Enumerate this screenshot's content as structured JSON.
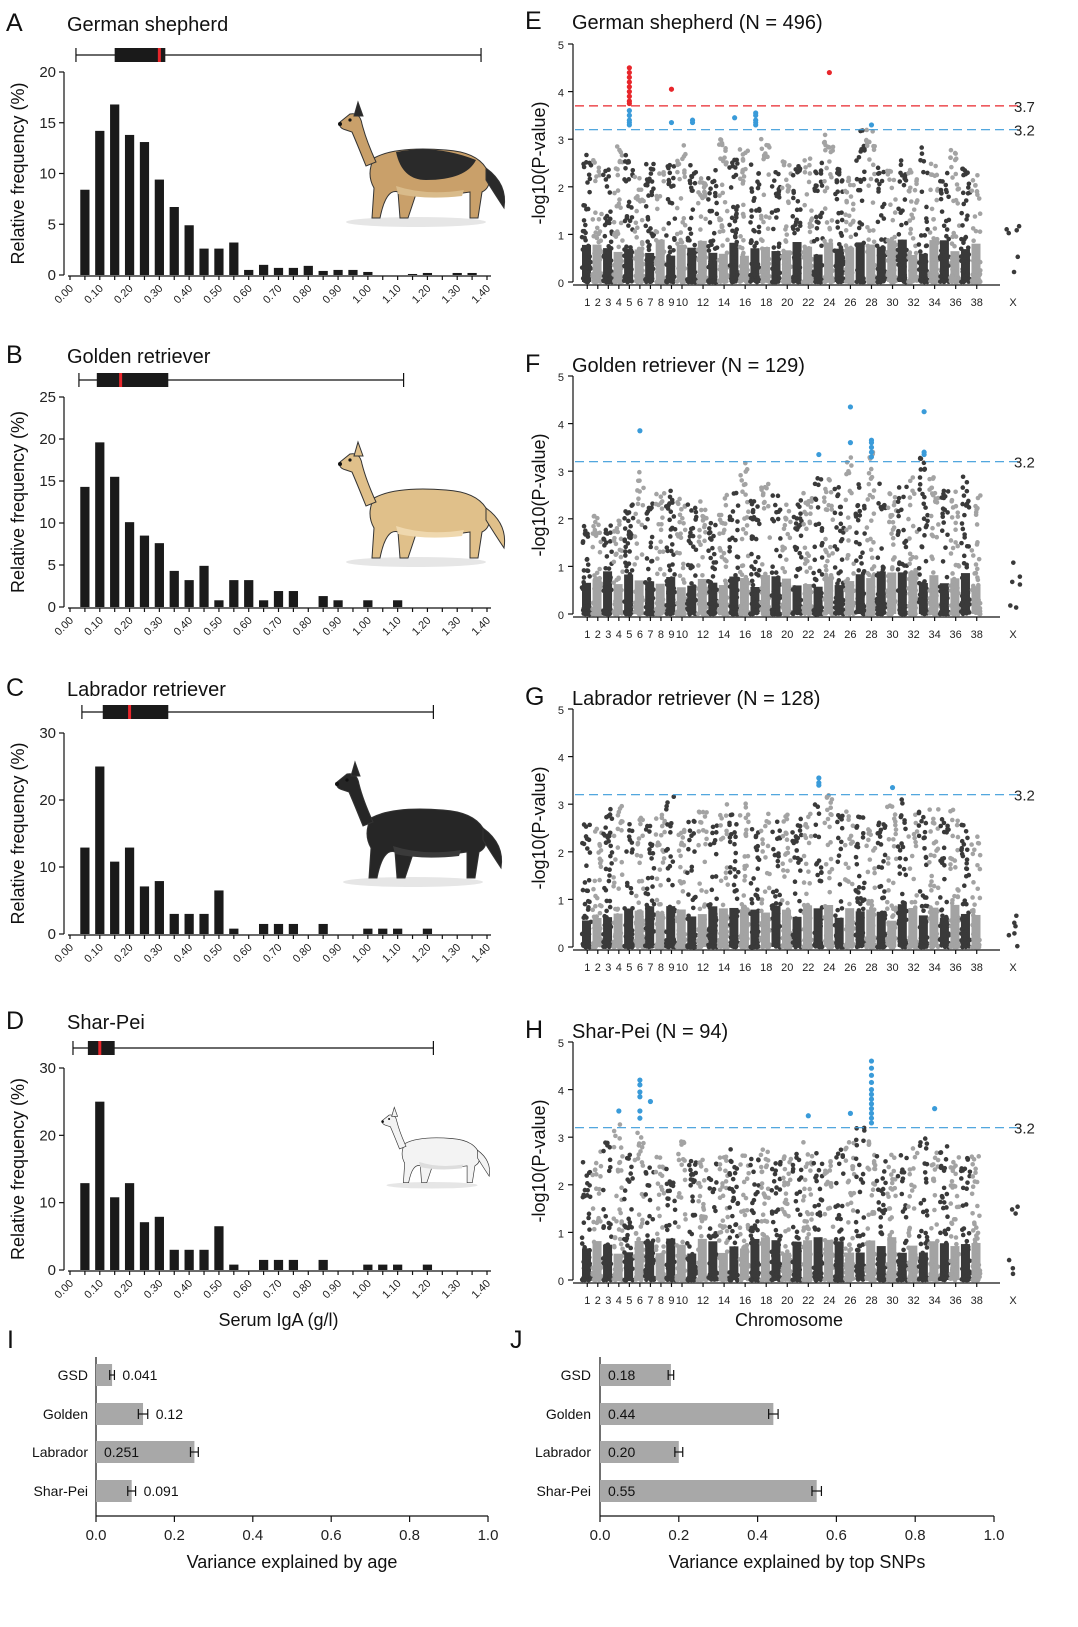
{
  "chart_data": [
    {
      "panel": "A",
      "title": "German shepherd",
      "type": "bar",
      "ylabel": "Relative frequency (%)",
      "ylim": [
        0,
        20
      ],
      "yticks": [
        0,
        5,
        10,
        15,
        20
      ],
      "xticks": [
        "0.00",
        "0.10",
        "0.20",
        "0.30",
        "0.40",
        "0.50",
        "0.60",
        "0.70",
        "0.80",
        "0.90",
        "1.00",
        "1.10",
        "1.20",
        "1.30",
        "1.40"
      ],
      "bin_width": 0.05,
      "bin_start": 0.05,
      "values": [
        8.4,
        14.2,
        16.8,
        13.8,
        13.1,
        9.4,
        6.7,
        4.9,
        2.6,
        2.6,
        3.2,
        0.5,
        1.0,
        0.7,
        0.7,
        0.9,
        0.4,
        0.5,
        0.5,
        0.3,
        0,
        0,
        0.1,
        0.2,
        0,
        0.2,
        0.2,
        0
      ],
      "boxplot": {
        "min": 0.02,
        "q1": 0.15,
        "median": 0.3,
        "q3": 0.32,
        "max": 1.38
      }
    },
    {
      "panel": "B",
      "title": "Golden retriever",
      "type": "bar",
      "ylabel": "Relative frequency (%)",
      "ylim": [
        0,
        25
      ],
      "yticks": [
        0,
        5,
        10,
        15,
        20,
        25
      ],
      "xticks": [
        "0.00",
        "0.10",
        "0.20",
        "0.30",
        "0.40",
        "0.50",
        "0.60",
        "0.70",
        "0.80",
        "0.90",
        "1.00",
        "1.10",
        "1.20",
        "1.30",
        "1.40"
      ],
      "bin_width": 0.05,
      "bin_start": 0.05,
      "values": [
        14.3,
        19.6,
        15.5,
        10.1,
        8.5,
        7.6,
        4.3,
        3.2,
        4.9,
        0.8,
        3.2,
        3.2,
        0.8,
        1.9,
        1.9,
        0,
        1.3,
        0.8,
        0,
        0.8,
        0,
        0.8,
        0,
        0,
        0,
        0,
        0,
        0
      ],
      "boxplot": {
        "min": 0.03,
        "q1": 0.09,
        "median": 0.17,
        "q3": 0.33,
        "max": 1.12
      }
    },
    {
      "panel": "C",
      "title": "Labrador retriever",
      "type": "bar",
      "ylabel": "Relative frequency (%)",
      "ylim": [
        0,
        30
      ],
      "yticks": [
        0,
        10,
        20,
        30
      ],
      "xticks": [
        "0.00",
        "0.10",
        "0.20",
        "0.30",
        "0.40",
        "0.50",
        "0.60",
        "0.70",
        "0.80",
        "0.90",
        "1.00",
        "1.10",
        "1.20",
        "1.30",
        "1.40"
      ],
      "bin_width": 0.05,
      "bin_start": 0.05,
      "values": [
        12.9,
        25.0,
        10.8,
        12.9,
        7.1,
        7.9,
        3.0,
        3.0,
        3.0,
        6.5,
        0.8,
        0,
        1.5,
        1.5,
        1.5,
        0,
        1.5,
        0,
        0,
        0.8,
        0.8,
        0.8,
        0,
        0.8,
        0,
        0,
        0,
        0
      ],
      "boxplot": {
        "min": 0.04,
        "q1": 0.11,
        "median": 0.2,
        "q3": 0.33,
        "max": 1.22
      }
    },
    {
      "panel": "D",
      "title": "Shar-Pei",
      "type": "bar",
      "ylabel": "Relative frequency (%)",
      "xlabel": "Serum IgA (g/l)",
      "ylim": [
        0,
        30
      ],
      "yticks": [
        0,
        10,
        20,
        30
      ],
      "xticks": [
        "0.00",
        "0.10",
        "0.20",
        "0.30",
        "0.40",
        "0.50",
        "0.60",
        "0.70",
        "0.80",
        "0.90",
        "1.00",
        "1.10",
        "1.20",
        "1.30",
        "1.40"
      ],
      "bin_width": 0.05,
      "bin_start": 0.05,
      "values": [
        12.9,
        25.0,
        10.8,
        12.9,
        7.1,
        7.9,
        3.0,
        3.0,
        3.0,
        6.5,
        0.8,
        0,
        1.5,
        1.5,
        1.5,
        0,
        1.5,
        0,
        0,
        0.8,
        0.8,
        0.8,
        0,
        0.8,
        0,
        0,
        0,
        0
      ],
      "boxplot": {
        "min": 0.01,
        "q1": 0.06,
        "median": 0.1,
        "q3": 0.15,
        "max": 1.22
      }
    },
    {
      "panel": "E",
      "title": "German shepherd (N = 496)",
      "type": "scatter",
      "ylabel": "-log10(P-value)",
      "ylim": [
        0,
        5
      ],
      "yticks": [
        0,
        1,
        2,
        3,
        4,
        5
      ],
      "xticks": [
        "1",
        "2",
        "3",
        "4",
        "5",
        "6",
        "7",
        "8",
        "9",
        "10",
        "12",
        "14",
        "16",
        "18",
        "20",
        "22",
        "24",
        "26",
        "28",
        "30",
        "32",
        "34",
        "36",
        "38",
        "X"
      ],
      "thresholds": [
        {
          "value": 3.7,
          "label": "3.7",
          "color": "#e8262b"
        },
        {
          "value": 3.2,
          "label": "3.2",
          "color": "#3a9bd9"
        }
      ],
      "peak_max": [
        2.7,
        2.6,
        2.4,
        2.9,
        2.8,
        2.3,
        2.5,
        2.4,
        2.6,
        2.9,
        2.5,
        2.3,
        2.4,
        3.0,
        2.6,
        2.9,
        2.5,
        3.1,
        2.4,
        2.6,
        2.5,
        2.7,
        2.6,
        3.1,
        2.4,
        2.2,
        3.2,
        3.2,
        2.4,
        2.5,
        2.6,
        2.5,
        2.9,
        2.5,
        2.3,
        2.8,
        2.4,
        2.3,
        1.2
      ],
      "hits": [
        {
          "chrom": 5,
          "values": [
            4.5,
            4.4,
            4.3,
            4.2,
            4.1,
            4.0,
            3.9,
            3.8,
            3.75
          ],
          "color": "#e8262b"
        },
        {
          "chrom": 5,
          "values": [
            3.6,
            3.5,
            3.4,
            3.35,
            3.3
          ],
          "color": "#3a9bd9"
        },
        {
          "chrom": 9,
          "values": [
            4.05
          ],
          "color": "#e8262b"
        },
        {
          "chrom": 9,
          "values": [
            3.35
          ],
          "color": "#3a9bd9"
        },
        {
          "chrom": 11,
          "values": [
            3.4,
            3.35
          ],
          "color": "#3a9bd9"
        },
        {
          "chrom": 15,
          "values": [
            3.45
          ],
          "color": "#3a9bd9"
        },
        {
          "chrom": 17,
          "values": [
            3.55,
            3.5,
            3.4,
            3.35,
            3.3
          ],
          "color": "#3a9bd9"
        },
        {
          "chrom": 24,
          "values": [
            4.4
          ],
          "color": "#e8262b"
        },
        {
          "chrom": 28,
          "values": [
            3.3
          ],
          "color": "#3a9bd9"
        }
      ]
    },
    {
      "panel": "F",
      "title": "Golden retriever (N = 129)",
      "type": "scatter",
      "ylabel": "-log10(P-value)",
      "ylim": [
        0,
        5
      ],
      "yticks": [
        0,
        1,
        2,
        3,
        4,
        5
      ],
      "xticks": [
        "1",
        "2",
        "3",
        "4",
        "5",
        "6",
        "7",
        "8",
        "9",
        "10",
        "12",
        "14",
        "16",
        "18",
        "20",
        "22",
        "24",
        "26",
        "28",
        "30",
        "32",
        "34",
        "36",
        "38",
        "X"
      ],
      "thresholds": [
        {
          "value": 3.2,
          "label": "3.2",
          "color": "#3a9bd9"
        }
      ],
      "peak_max": [
        2.0,
        2.1,
        1.9,
        2.0,
        2.3,
        3.0,
        2.4,
        2.6,
        2.6,
        2.5,
        2.3,
        2.4,
        2.0,
        2.5,
        2.6,
        3.2,
        2.4,
        2.8,
        2.6,
        2.3,
        2.4,
        2.6,
        2.9,
        2.9,
        2.7,
        3.3,
        2.8,
        3.5,
        2.9,
        2.7,
        2.7,
        2.9,
        3.4,
        3.1,
        2.6,
        2.6,
        2.9,
        2.5,
        1.1
      ],
      "hits": [
        {
          "chrom": 6,
          "values": [
            3.85
          ],
          "color": "#3a9bd9"
        },
        {
          "chrom": 23,
          "values": [
            3.35
          ],
          "color": "#3a9bd9"
        },
        {
          "chrom": 26,
          "values": [
            4.35,
            3.6
          ],
          "color": "#3a9bd9"
        },
        {
          "chrom": 28,
          "values": [
            3.65,
            3.6,
            3.5,
            3.4,
            3.3
          ],
          "color": "#3a9bd9"
        },
        {
          "chrom": 33,
          "values": [
            4.25,
            3.4,
            3.35
          ],
          "color": "#3a9bd9"
        }
      ]
    },
    {
      "panel": "G",
      "title": "Labrador retriever (N = 128)",
      "type": "scatter",
      "ylabel": "-log10(P-value)",
      "ylim": [
        0,
        5
      ],
      "yticks": [
        0,
        1,
        2,
        3,
        4,
        5
      ],
      "xticks": [
        "1",
        "2",
        "3",
        "4",
        "5",
        "6",
        "7",
        "8",
        "9",
        "10",
        "12",
        "14",
        "16",
        "18",
        "20",
        "22",
        "24",
        "26",
        "28",
        "30",
        "32",
        "34",
        "36",
        "38",
        "X"
      ],
      "thresholds": [
        {
          "value": 3.2,
          "label": "3.2",
          "color": "#3a9bd9"
        }
      ],
      "peak_max": [
        2.6,
        2.5,
        2.9,
        3.0,
        2.6,
        2.8,
        2.6,
        2.8,
        3.2,
        2.5,
        2.7,
        2.9,
        2.6,
        3.0,
        2.8,
        3.1,
        2.7,
        2.8,
        2.9,
        2.8,
        2.7,
        2.9,
        3.0,
        3.2,
        2.8,
        2.9,
        2.8,
        2.7,
        2.8,
        3.0,
        3.1,
        2.8,
        3.0,
        2.9,
        2.7,
        2.9,
        2.6,
        2.5,
        0.7
      ],
      "hits": [
        {
          "chrom": 23,
          "values": [
            3.55,
            3.45,
            3.4
          ],
          "color": "#3a9bd9"
        },
        {
          "chrom": 30,
          "values": [
            3.35
          ],
          "color": "#3a9bd9"
        }
      ]
    },
    {
      "panel": "H",
      "title": "Shar-Pei (N = 94)",
      "type": "scatter",
      "ylabel": "-log10(P-value)",
      "xlabel": "Chromosome",
      "ylim": [
        0,
        5
      ],
      "yticks": [
        0,
        1,
        2,
        3,
        4,
        5
      ],
      "xticks": [
        "1",
        "2",
        "3",
        "4",
        "5",
        "6",
        "7",
        "8",
        "9",
        "10",
        "12",
        "14",
        "16",
        "18",
        "20",
        "22",
        "24",
        "26",
        "28",
        "30",
        "32",
        "34",
        "36",
        "38",
        "X"
      ],
      "thresholds": [
        {
          "value": 3.2,
          "label": "3.2",
          "color": "#3a9bd9"
        }
      ],
      "peak_max": [
        2.5,
        2.9,
        3.0,
        3.3,
        2.7,
        3.2,
        2.4,
        2.6,
        2.4,
        3.0,
        2.5,
        2.6,
        2.5,
        2.6,
        2.8,
        2.7,
        2.6,
        2.8,
        2.5,
        2.6,
        2.8,
        2.9,
        2.7,
        2.6,
        2.8,
        2.9,
        3.2,
        3.0,
        2.6,
        2.8,
        2.7,
        2.9,
        3.0,
        2.7,
        2.9,
        2.6,
        2.8,
        2.6,
        1.6
      ],
      "hits": [
        {
          "chrom": 4,
          "values": [
            3.55
          ],
          "color": "#3a9bd9"
        },
        {
          "chrom": 6,
          "values": [
            4.2,
            4.1,
            3.95,
            3.85,
            3.55,
            3.4
          ],
          "color": "#3a9bd9"
        },
        {
          "chrom": 7,
          "values": [
            3.75
          ],
          "color": "#3a9bd9"
        },
        {
          "chrom": 22,
          "values": [
            3.45
          ],
          "color": "#3a9bd9"
        },
        {
          "chrom": 26,
          "values": [
            3.5
          ],
          "color": "#3a9bd9"
        },
        {
          "chrom": 28,
          "values": [
            4.6,
            4.45,
            4.3,
            4.15,
            4.0,
            3.9,
            3.8,
            3.7,
            3.6,
            3.5,
            3.4,
            3.3
          ],
          "color": "#3a9bd9"
        },
        {
          "chrom": 34,
          "values": [
            3.6
          ],
          "color": "#3a9bd9"
        }
      ]
    },
    {
      "panel": "I",
      "type": "bar",
      "orientation": "horizontal",
      "xlabel": "Variance explained by age",
      "xlim": [
        0,
        1.0
      ],
      "xticks": [
        "0.0",
        "0.2",
        "0.4",
        "0.6",
        "0.8",
        "1.0"
      ],
      "categories": [
        "GSD",
        "Golden",
        "Labrador",
        "Shar-Pei"
      ],
      "values": [
        0.041,
        0.12,
        0.251,
        0.091
      ],
      "errors": [
        0.006,
        0.012,
        0.01,
        0.01
      ],
      "value_labels": [
        "0.041",
        "0.12",
        "0.251",
        "0.091"
      ]
    },
    {
      "panel": "J",
      "type": "bar",
      "orientation": "horizontal",
      "xlabel": "Variance explained by top SNPs",
      "xlim": [
        0,
        1.0
      ],
      "xticks": [
        "0.0",
        "0.2",
        "0.4",
        "0.6",
        "0.8",
        "1.0"
      ],
      "categories": [
        "GSD",
        "Golden",
        "Labrador",
        "Shar-Pei"
      ],
      "values": [
        0.18,
        0.44,
        0.2,
        0.55
      ],
      "errors": [
        0.007,
        0.012,
        0.01,
        0.012
      ],
      "value_labels": [
        "0.18",
        "0.44",
        "0.20",
        "0.55"
      ]
    }
  ],
  "colors": {
    "bar": "#1a1a1a",
    "median": "#e8262b",
    "snp_dark": "#3a3a3a",
    "snp_light": "#a3a3a3",
    "hbar": "#a8a8a8"
  },
  "icons": [
    "german-shepherd-illustration",
    "golden-retriever-illustration",
    "labrador-retriever-illustration",
    "shar-pei-illustration"
  ]
}
